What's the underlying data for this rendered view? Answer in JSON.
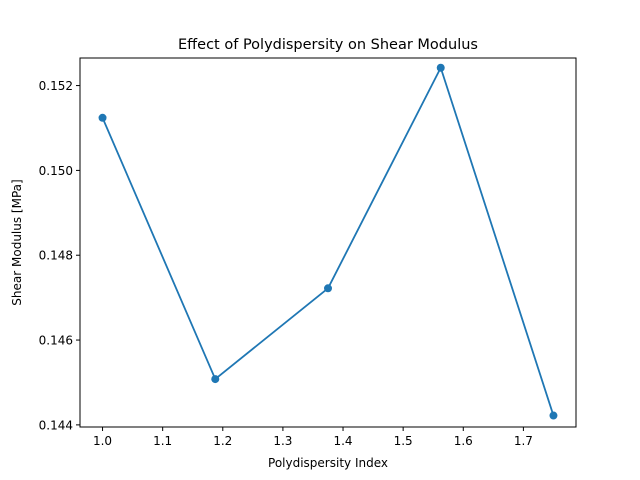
{
  "chart_data": {
    "type": "line",
    "title": "Effect of Polydispersity on Shear Modulus",
    "xlabel": "Polydispersity Index",
    "ylabel": "Shear Modulus [MPa]",
    "xlim": [
      0.9625,
      1.7875
    ],
    "ylim": [
      0.14395,
      0.15265
    ],
    "xticks": [
      1.0,
      1.1,
      1.2,
      1.3,
      1.4,
      1.5,
      1.6,
      1.7
    ],
    "xtick_labels": [
      "1.0",
      "1.1",
      "1.2",
      "1.3",
      "1.4",
      "1.5",
      "1.6",
      "1.7"
    ],
    "yticks": [
      0.144,
      0.146,
      0.148,
      0.15,
      0.152
    ],
    "ytick_labels": [
      "0.144",
      "0.146",
      "0.148",
      "0.150",
      "0.152"
    ],
    "grid": false,
    "series": [
      {
        "color": "#1f77b4",
        "marker": "circle",
        "x": [
          1.0,
          1.1875,
          1.375,
          1.5625,
          1.75
        ],
        "y": [
          0.15124,
          0.14508,
          0.14722,
          0.15242,
          0.14422
        ]
      }
    ]
  }
}
